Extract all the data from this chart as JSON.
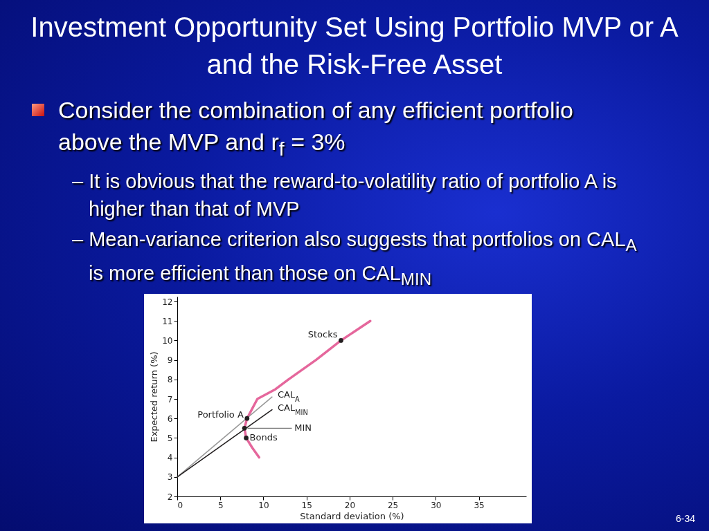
{
  "chart_data": {
    "type": "line",
    "title": "Investment Opportunity Set Using Portfolio MVP or A and the Risk-Free Asset",
    "xlabel": "Standard deviation (%)",
    "ylabel": "Expected return (%)",
    "xlim": [
      0,
      40.5
    ],
    "xticks": [
      0,
      5,
      10,
      15,
      20,
      25,
      30,
      35
    ],
    "ylim": [
      2,
      12.25
    ],
    "yticks": [
      2,
      3,
      4,
      5,
      6,
      7,
      8,
      9,
      10,
      11,
      12
    ],
    "grid": false,
    "legend": false,
    "series": [
      {
        "color": "#e5679c",
        "x": [
          9.5,
          8.7,
          8.0,
          7.8,
          8.1,
          8.7,
          9.3,
          11.4,
          12.9,
          16.1,
          19,
          22.4
        ],
        "values": [
          4,
          4.5,
          5,
          5.5,
          6,
          6.5,
          7,
          7.5,
          8,
          9,
          10,
          11
        ]
      },
      {
        "name": "CAL$_{A}$",
        "color": "#9a9a9a",
        "x": [
          0,
          11
        ],
        "values": [
          3,
          7.1
        ]
      },
      {
        "name": "CAL$_{MIN}$",
        "color": "#231f20",
        "x": [
          0,
          11
        ],
        "values": [
          3,
          6.45
        ]
      },
      {
        "type": "scatter",
        "marker": "circle",
        "color": "#231f20",
        "x": [
          19,
          8.1,
          7.8,
          8.0
        ],
        "values": [
          10,
          6,
          5.5,
          5
        ]
      }
    ],
    "annotations": [
      "Consider the combination of any efficient portfolio above the MVP and r$_{f}$ = 3%",
      "– It is obvious that the reward-to-volatility ratio of portfolio A is higher than that of MVP",
      "– Mean-variance criterion also suggests that portfolios on CAL$_{A}$ is more efficient than those on CAL$_{MIN}$",
      "6-34",
      {
        "text": "Stocks",
        "x": 19,
        "y": 10
      },
      {
        "text": "Portfolio A",
        "x": 8.1,
        "y": 6
      },
      {
        "text": "MIN",
        "x": 7.8,
        "y": 5.5
      },
      {
        "text": "Bonds",
        "x": 8.0,
        "y": 5
      }
    ]
  }
}
